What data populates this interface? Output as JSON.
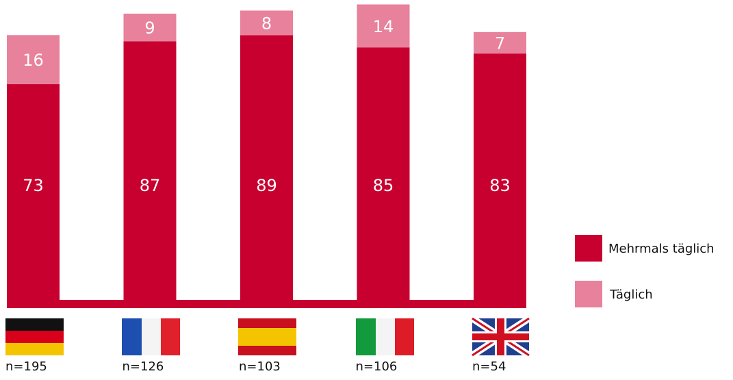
{
  "chart_data": {
    "type": "stacked-bar",
    "categories": [
      "n=195",
      "n=126",
      "n=103",
      "n=106",
      "n=54"
    ],
    "series": [
      {
        "name": "Mehrmals täglich",
        "color": "#c8002f",
        "values": [
          73,
          87,
          89,
          85,
          83
        ]
      },
      {
        "name": "Täglich",
        "color": "#e8819b",
        "values": [
          16,
          9,
          8,
          14,
          7
        ]
      }
    ]
  }
}
